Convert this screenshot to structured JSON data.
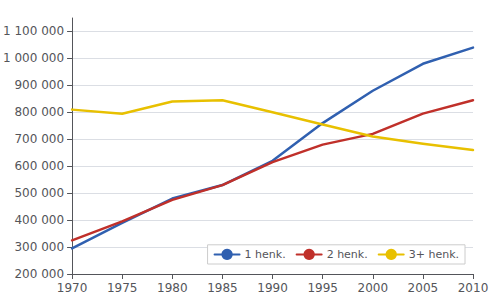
{
  "chart_data": {
    "type": "line",
    "x": [
      1970,
      1975,
      1980,
      1985,
      1990,
      1995,
      2000,
      2005,
      2010
    ],
    "series": [
      {
        "name": "1 henk.",
        "color": "#3060b0",
        "values": [
          295000,
          390000,
          480000,
          530000,
          620000,
          760000,
          880000,
          980000,
          1040000
        ]
      },
      {
        "name": "2 henk.",
        "color": "#c0302a",
        "values": [
          325000,
          395000,
          475000,
          530000,
          615000,
          680000,
          720000,
          795000,
          845000
        ]
      },
      {
        "name": "3+ henk.",
        "color": "#e8c000",
        "values": [
          810000,
          795000,
          840000,
          845000,
          800000,
          755000,
          710000,
          683000,
          660000
        ]
      }
    ],
    "xlim": [
      1970,
      2010
    ],
    "xticks": [
      1970,
      1975,
      1980,
      1985,
      1990,
      1995,
      2000,
      2005,
      2010
    ],
    "ylim": [
      200000,
      1150000
    ],
    "yticks": [
      {
        "value": 200000,
        "label": "200 000"
      },
      {
        "value": 300000,
        "label": "300 000"
      },
      {
        "value": 400000,
        "label": "400 000"
      },
      {
        "value": 500000,
        "label": "500 000"
      },
      {
        "value": 600000,
        "label": "600 000"
      },
      {
        "value": 700000,
        "label": "700 000"
      },
      {
        "value": 800000,
        "label": "800 000"
      },
      {
        "value": 900000,
        "label": "900 000"
      },
      {
        "value": 1000000,
        "label": "1 000 000"
      },
      {
        "value": 1100000,
        "label": "1 100 000"
      }
    ],
    "grid": true,
    "legend": "lower right"
  }
}
